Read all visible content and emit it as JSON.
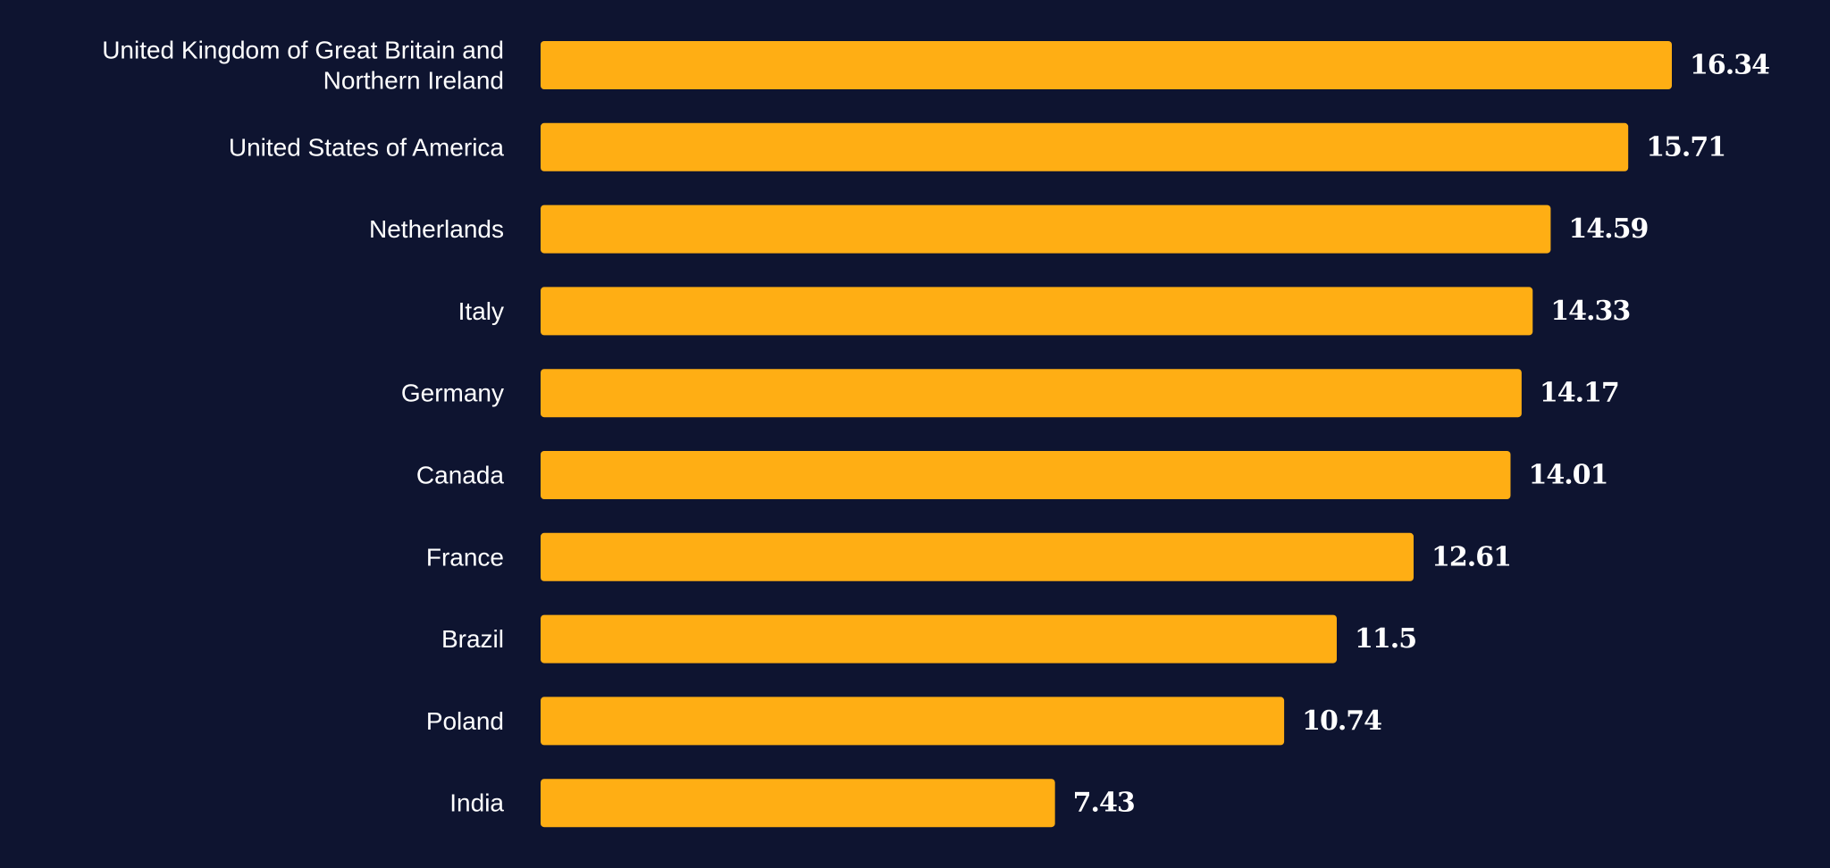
{
  "chart_data": {
    "type": "bar",
    "orientation": "horizontal",
    "title": "",
    "xlabel": "",
    "ylabel": "",
    "categories": [
      "United Kingdom of Great Britain and Northern Ireland",
      "United States of America",
      "Netherlands",
      "Italy",
      "Germany",
      "Canada",
      "France",
      "Brazil",
      "Poland",
      "India"
    ],
    "category_label_lines": [
      [
        "United Kingdom of Great Britain and",
        "Northern Ireland"
      ],
      [
        "United States of America"
      ],
      [
        "Netherlands"
      ],
      [
        "Italy"
      ],
      [
        "Germany"
      ],
      [
        "Canada"
      ],
      [
        "France"
      ],
      [
        "Brazil"
      ],
      [
        "Poland"
      ],
      [
        "India"
      ]
    ],
    "values": [
      16.34,
      15.71,
      14.59,
      14.33,
      14.17,
      14.01,
      12.61,
      11.5,
      10.74,
      7.43
    ],
    "value_labels": [
      "16.34",
      "15.71",
      "14.59",
      "14.33",
      "14.17",
      "14.01",
      "12.61",
      "11.5",
      "10.74",
      "7.43"
    ],
    "xlim": [
      0,
      16.34
    ],
    "grid": false,
    "legend": "none",
    "colors": {
      "background": "#0e1430",
      "bar": "#ffae14",
      "text": "#ffffff"
    }
  }
}
